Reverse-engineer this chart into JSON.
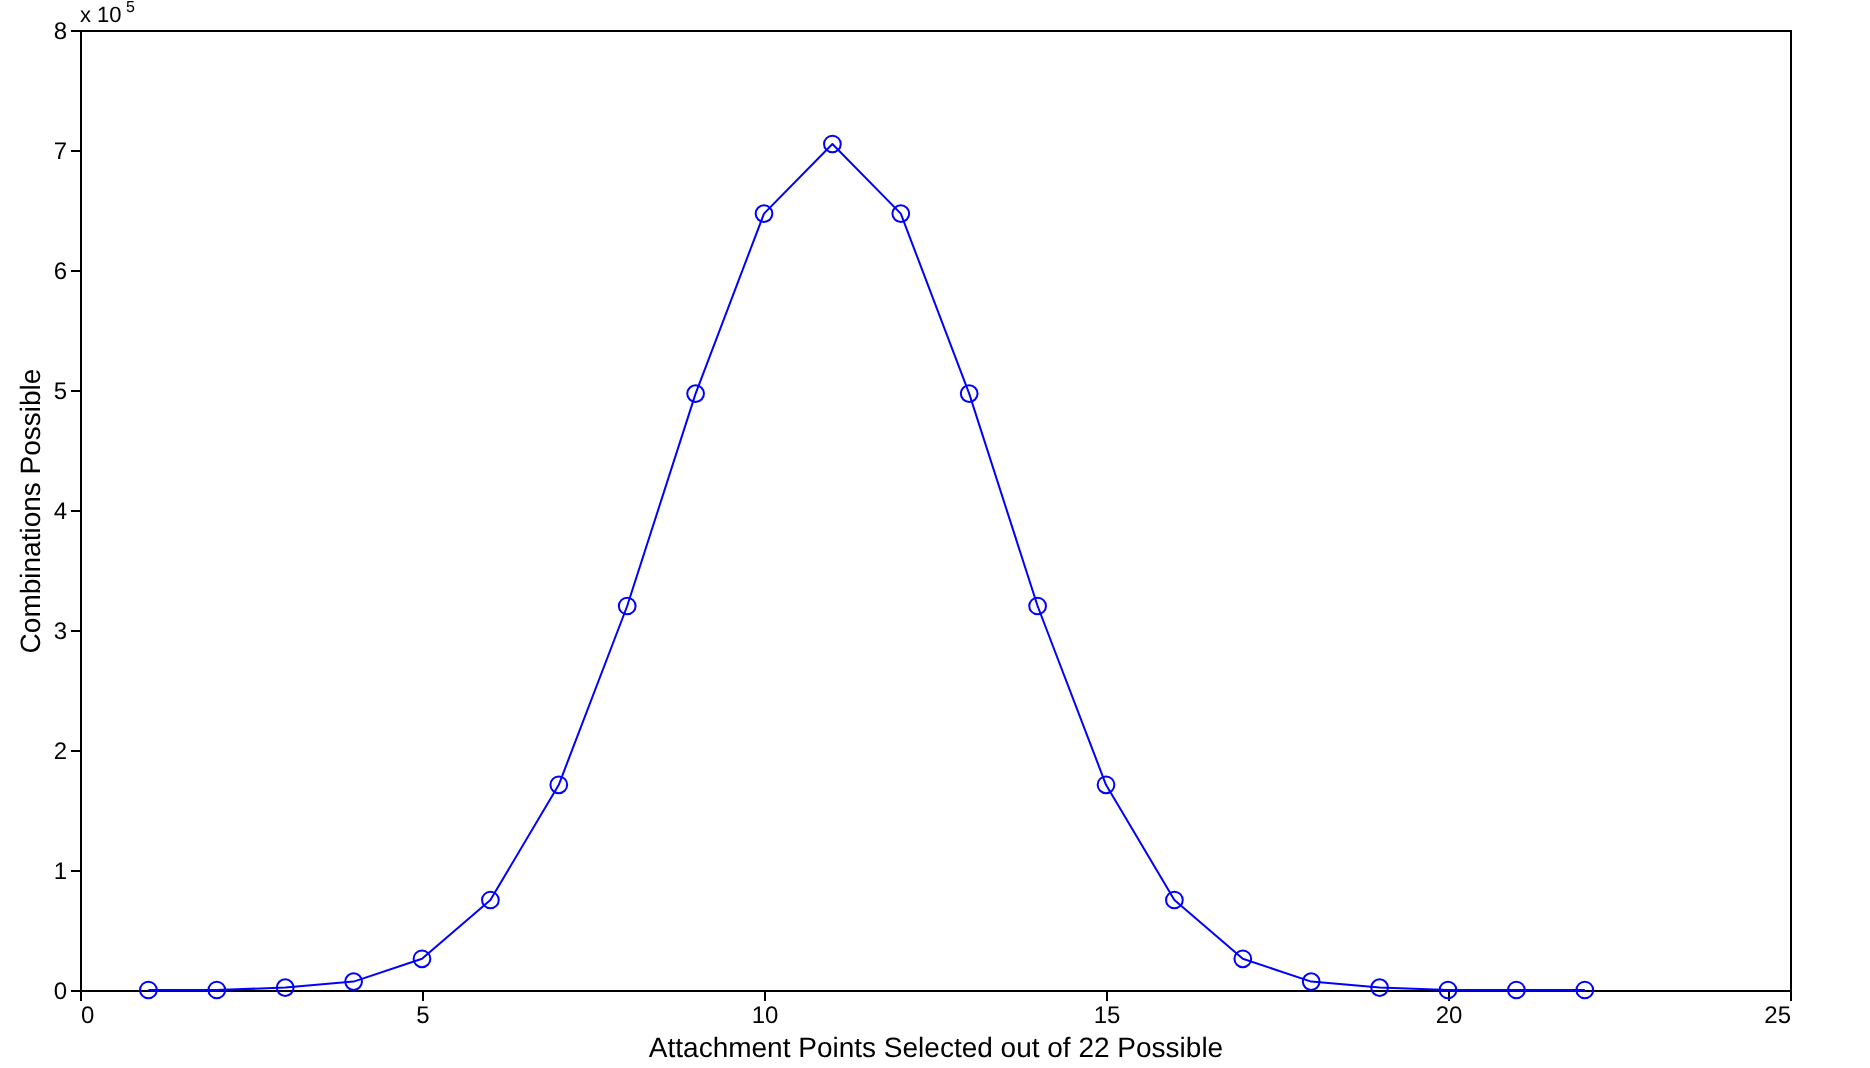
{
  "chart_data": {
    "type": "line",
    "xlabel": "Attachment Points Selected out of 22 Possible",
    "ylabel": "Combinations Possible",
    "annotations": [
      "x 10$^{5}$"
    ],
    "x": [
      1,
      2,
      3,
      4,
      5,
      6,
      7,
      8,
      9,
      10,
      11,
      12,
      13,
      14,
      15,
      16,
      17,
      18,
      19,
      20,
      21,
      22
    ],
    "series": [
      {
        "color": "#0000ff",
        "values": [
          0,
          0,
          0.02,
          0.07,
          0.26,
          0.75,
          1.71,
          3.2,
          4.97,
          6.47,
          7.05,
          6.47,
          4.97,
          3.2,
          1.71,
          0.75,
          0.26,
          0.07,
          0.02,
          0,
          0,
          0
        ]
      }
    ],
    "xlim": [
      0,
      25
    ],
    "xticks": [
      0,
      5,
      10,
      15,
      20,
      25
    ],
    "ylim": [
      0,
      8
    ],
    "yticks": [
      0,
      1,
      2,
      3,
      4,
      5,
      6,
      7,
      8
    ],
    "marker": "circle",
    "line_style": "solid",
    "grid": false
  }
}
